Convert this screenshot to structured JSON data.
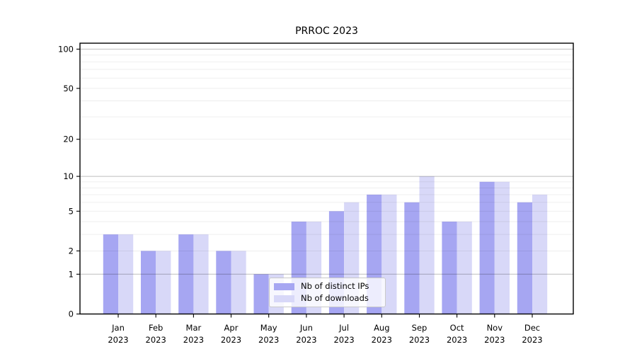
{
  "figure": {
    "title": "PRROC 2023"
  },
  "colors": {
    "ips_bar": "#a6a6f2",
    "downloads_bar": "#d8d8f8",
    "grid_major": "#bdbdbd",
    "grid_minor": "#ececec",
    "spine": "#000000",
    "legend_border": "#c9c9c9",
    "text": "#000000"
  },
  "legend": {
    "position": "inside-bottom-center-left"
  },
  "chart_data": {
    "type": "bar",
    "title": "PRROC 2023",
    "categories": [
      "Jan 2023",
      "Feb 2023",
      "Mar 2023",
      "Apr 2023",
      "May 2023",
      "Jun 2023",
      "Jul 2023",
      "Aug 2023",
      "Sep 2023",
      "Oct 2023",
      "Nov 2023",
      "Dec 2023"
    ],
    "series": [
      {
        "name": "Nb of distinct IPs",
        "color": "#a6a6f2",
        "values": [
          3,
          2,
          3,
          2,
          1,
          4,
          5,
          7,
          6,
          4,
          9,
          6
        ]
      },
      {
        "name": "Nb of downloads",
        "color": "#d8d8f8",
        "values": [
          3,
          2,
          3,
          2,
          1,
          4,
          6,
          7,
          10,
          4,
          9,
          7
        ]
      }
    ],
    "xlabel": "",
    "ylabel": "",
    "y_scale": "log1p",
    "y_ticks_labeled": [
      0,
      1,
      2,
      5,
      10,
      20,
      50,
      100
    ],
    "y_grid_major": [
      1,
      10,
      100
    ],
    "y_grid_minor": [
      2,
      3,
      4,
      5,
      6,
      7,
      8,
      9,
      20,
      30,
      40,
      50,
      60,
      70,
      80,
      90
    ],
    "ylim": [
      0,
      111
    ],
    "grid": true,
    "grid_above_bars": true,
    "legend_position": "lower center (inside plot)"
  }
}
